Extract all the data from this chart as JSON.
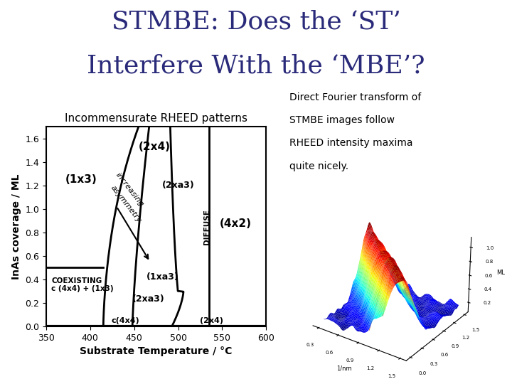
{
  "title_line1": "STMBE: Does the ‘ST’",
  "title_line2": "Interfere With the ‘MBE’?",
  "title_color": "#2a2a7a",
  "title_fontsize": 26,
  "bg_color": "#ffffff",
  "chart_title": "Incommensurate RHEED patterns",
  "xlabel": "Substrate Temperature / °C",
  "ylabel": "InAs coverage / ML",
  "xlim": [
    350,
    600
  ],
  "ylim": [
    0,
    1.7
  ],
  "xticks": [
    350,
    400,
    450,
    500,
    550,
    600
  ],
  "yticks": [
    0.0,
    0.2,
    0.4,
    0.6,
    0.8,
    1.0,
    1.2,
    1.4,
    1.6
  ],
  "right_text_lines": [
    "Direct Fourier transform of",
    "STMBE images follow",
    "RHEED intensity maxima",
    "quite nicely."
  ]
}
